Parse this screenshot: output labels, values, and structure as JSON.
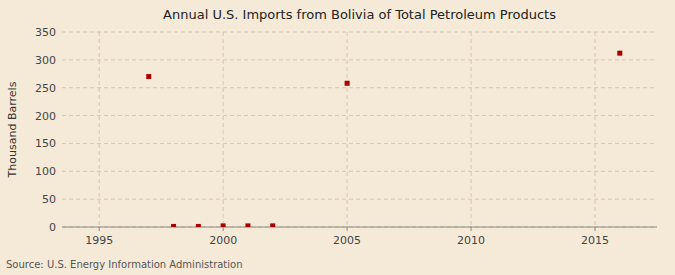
{
  "chart_data": {
    "type": "scatter",
    "title": "Annual U.S. Imports from Bolivia of Total Petroleum Products",
    "ylabel": "Thousand Barrels",
    "annotations": [
      "Source: U.S. Energy Information Administration"
    ],
    "x": [
      1997,
      1998,
      1999,
      2000,
      2001,
      2002,
      2005,
      2016
    ],
    "values": [
      270,
      1,
      1,
      2,
      2,
      2,
      258,
      312
    ],
    "color": "#aa0000",
    "marker": "square",
    "xlim": [
      1993.5,
      2017.5
    ],
    "ylim": [
      0,
      350
    ],
    "xticks": [
      1995,
      2000,
      2005,
      2010,
      2015
    ],
    "yticks": [
      0,
      50,
      100,
      150,
      200,
      250,
      300,
      350
    ],
    "grid": true
  }
}
